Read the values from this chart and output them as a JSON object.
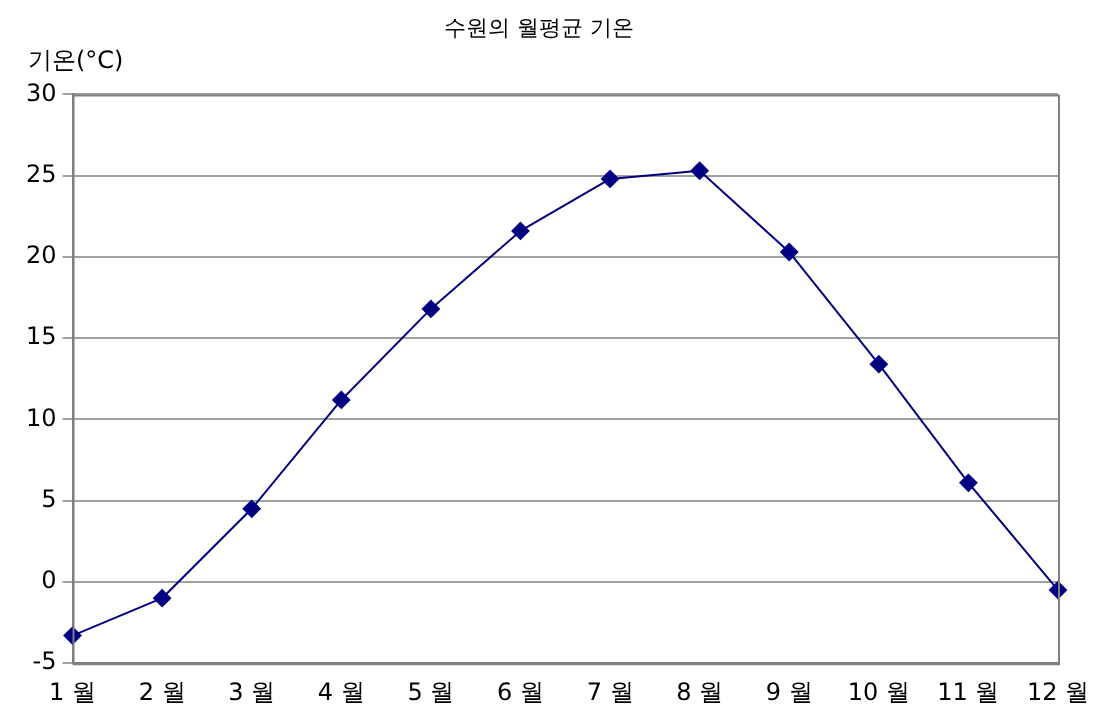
{
  "chart_data": {
    "type": "line",
    "title": "수원의 월평균 기온",
    "ylabel": "기온(°C)",
    "categories": [
      "1 월",
      "2 월",
      "3 월",
      "4 월",
      "5 월",
      "6 월",
      "7 월",
      "8 월",
      "9 월",
      "10 월",
      "11 월",
      "12 월"
    ],
    "series": [
      {
        "color": "#000080",
        "values": [
          -3.3,
          -1.0,
          4.5,
          11.2,
          16.8,
          21.6,
          24.8,
          25.3,
          20.3,
          13.4,
          6.1,
          -0.5
        ]
      }
    ],
    "ylim": [
      -5,
      30
    ],
    "yticks": [
      -5,
      0,
      5,
      10,
      15,
      20,
      25,
      30
    ],
    "grid": "y",
    "legend": false,
    "marker": "diamond",
    "line_style": "solid"
  }
}
